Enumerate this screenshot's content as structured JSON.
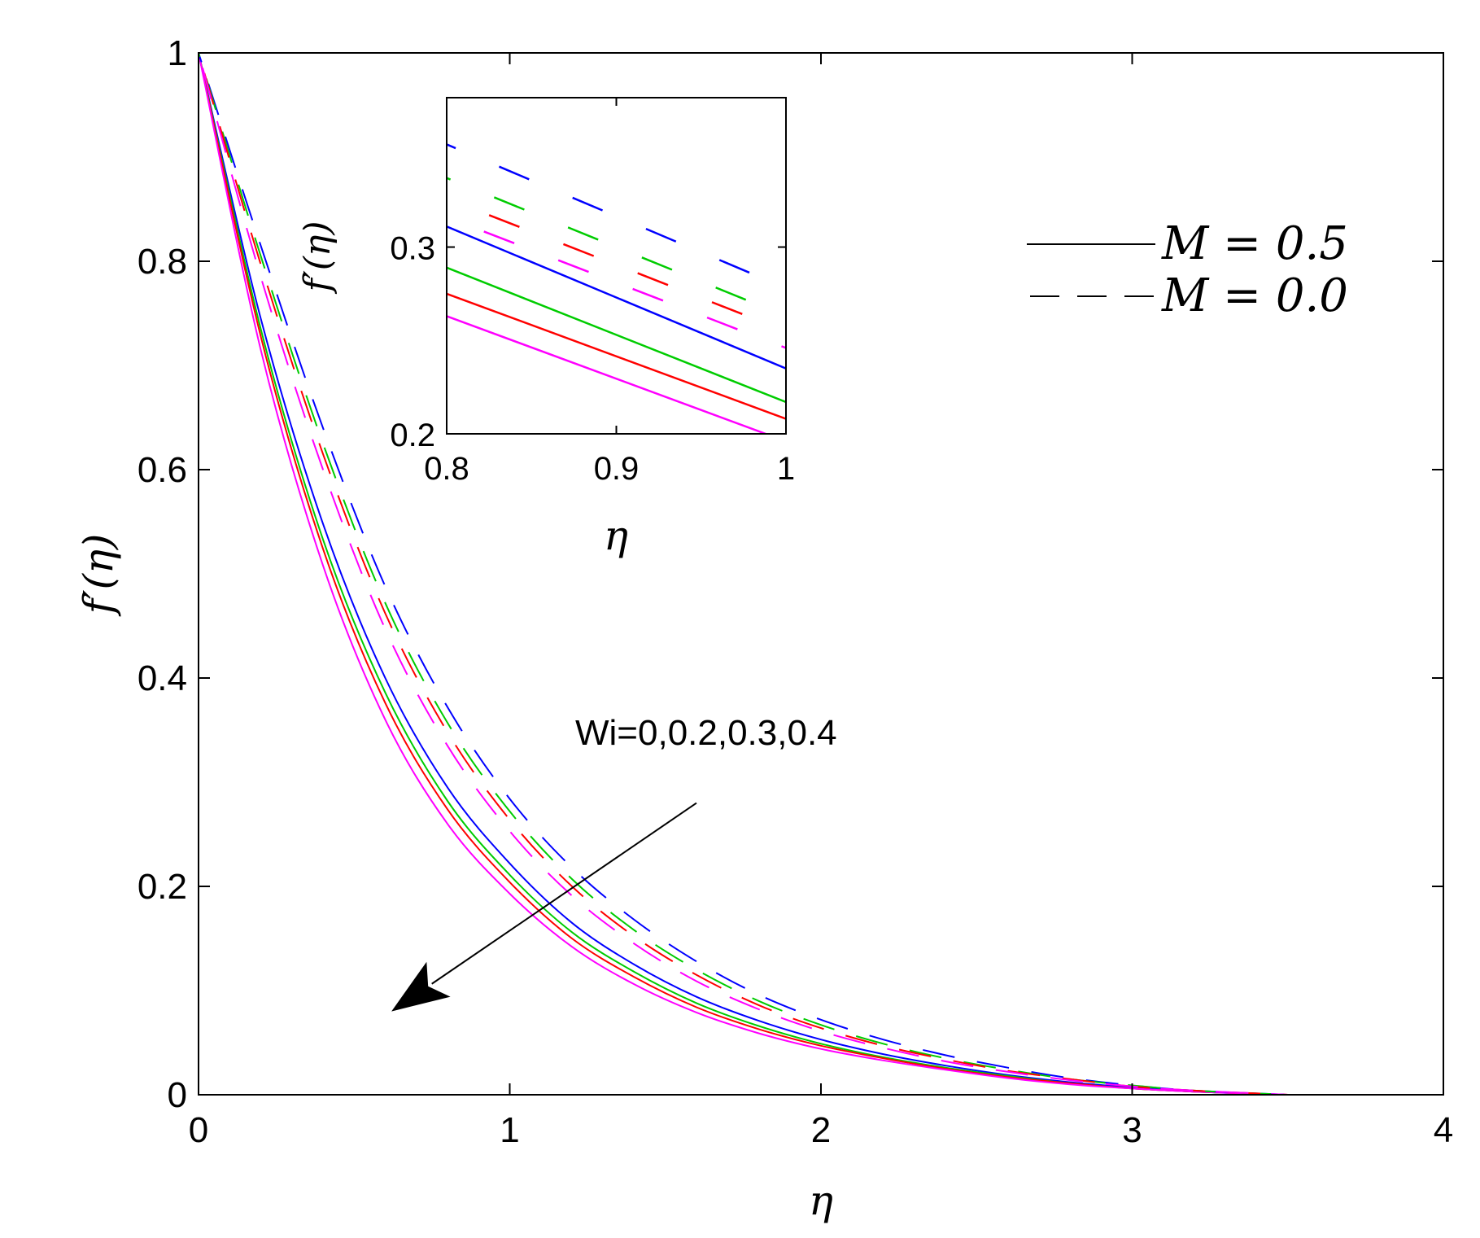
{
  "chart_data": [
    {
      "type": "line",
      "title": "",
      "xlabel": "η",
      "ylabel": "f′(η)",
      "xlim": [
        0,
        4
      ],
      "ylim": [
        0,
        1
      ],
      "xticks": [
        0,
        1,
        2,
        3,
        4
      ],
      "yticks": [
        0,
        0.2,
        0.4,
        0.6,
        0.8,
        1
      ],
      "xtick_labels": [
        "0",
        "1",
        "2",
        "3",
        "4"
      ],
      "ytick_labels": [
        "0",
        "0.2",
        "0.4",
        "0.6",
        "0.8",
        "1"
      ],
      "grid": false,
      "legend": {
        "placement": "top-right",
        "entries": [
          {
            "label": "M = 0.5",
            "style": "solid"
          },
          {
            "label": "M = 0.0",
            "style": "dashed"
          }
        ]
      },
      "annotation": {
        "text": "Wi=0,0.2,0.3,0.4",
        "arrow_from": [
          1.6,
          0.28
        ],
        "arrow_to": [
          0.62,
          0.08
        ]
      },
      "x": [
        0,
        0.2,
        0.4,
        0.6,
        0.8,
        1.0,
        1.2,
        1.4,
        1.6,
        1.8,
        2.0,
        2.2,
        2.4,
        2.6,
        2.8,
        3.0,
        3.2,
        3.5
      ],
      "series": [
        {
          "color": "#0000ff",
          "style": "solid",
          "values": [
            1,
            0.745,
            0.548,
            0.4,
            0.295,
            0.222,
            0.165,
            0.125,
            0.094,
            0.071,
            0.053,
            0.039,
            0.028,
            0.019,
            0.012,
            0.007,
            0.003,
            0.0
          ]
        },
        {
          "color": "#00cc00",
          "style": "solid",
          "values": [
            1,
            0.735,
            0.533,
            0.386,
            0.282,
            0.211,
            0.156,
            0.118,
            0.088,
            0.066,
            0.049,
            0.036,
            0.026,
            0.018,
            0.011,
            0.006,
            0.003,
            0.0
          ]
        },
        {
          "color": "#ff0000",
          "style": "solid",
          "values": [
            1,
            0.728,
            0.524,
            0.376,
            0.274,
            0.204,
            0.15,
            0.113,
            0.084,
            0.063,
            0.047,
            0.035,
            0.025,
            0.017,
            0.011,
            0.006,
            0.003,
            0.0
          ]
        },
        {
          "color": "#ff00ff",
          "style": "solid",
          "values": [
            1,
            0.715,
            0.508,
            0.36,
            0.26,
            0.193,
            0.142,
            0.106,
            0.079,
            0.059,
            0.044,
            0.033,
            0.024,
            0.016,
            0.01,
            0.006,
            0.003,
            0.0
          ]
        },
        {
          "color": "#0000ff",
          "style": "dashed",
          "values": [
            1,
            0.815,
            0.64,
            0.488,
            0.372,
            0.284,
            0.218,
            0.168,
            0.128,
            0.096,
            0.072,
            0.053,
            0.038,
            0.026,
            0.016,
            0.009,
            0.004,
            0.0
          ]
        },
        {
          "color": "#00cc00",
          "style": "dashed",
          "values": [
            1,
            0.805,
            0.625,
            0.472,
            0.357,
            0.272,
            0.207,
            0.158,
            0.12,
            0.09,
            0.067,
            0.049,
            0.035,
            0.024,
            0.015,
            0.009,
            0.004,
            0.0
          ]
        },
        {
          "color": "#ff0000",
          "style": "dashed",
          "values": [
            1,
            0.797,
            0.615,
            0.462,
            0.348,
            0.264,
            0.2,
            0.152,
            0.115,
            0.086,
            0.064,
            0.047,
            0.034,
            0.023,
            0.015,
            0.008,
            0.004,
            0.0
          ]
        },
        {
          "color": "#ff00ff",
          "style": "dashed",
          "values": [
            1,
            0.785,
            0.6,
            0.447,
            0.335,
            0.253,
            0.191,
            0.145,
            0.109,
            0.082,
            0.061,
            0.045,
            0.032,
            0.022,
            0.014,
            0.008,
            0.004,
            0.0
          ]
        }
      ]
    },
    {
      "type": "line",
      "title": "",
      "xlabel": "η",
      "ylabel": "f′(η)",
      "xlim": [
        0.8,
        1.0
      ],
      "ylim": [
        0.2,
        0.38
      ],
      "xticks": [
        0.8,
        0.9,
        1.0
      ],
      "yticks": [
        0.2,
        0.3
      ],
      "xtick_labels": [
        "0.8",
        "0.9",
        "1"
      ],
      "ytick_labels": [
        "0.2",
        "0.3"
      ],
      "grid": false,
      "x": [
        0.8,
        1.0
      ],
      "series": [
        {
          "color": "#0000ff",
          "style": "solid",
          "values": [
            0.311,
            0.235
          ]
        },
        {
          "color": "#00cc00",
          "style": "solid",
          "values": [
            0.289,
            0.217
          ]
        },
        {
          "color": "#ff0000",
          "style": "solid",
          "values": [
            0.275,
            0.208
          ]
        },
        {
          "color": "#ff00ff",
          "style": "solid",
          "values": [
            0.263,
            0.196
          ]
        },
        {
          "color": "#0000ff",
          "style": "dashed",
          "values": [
            0.355,
            0.278
          ]
        },
        {
          "color": "#00cc00",
          "style": "dashed",
          "values": [
            0.337,
            0.263
          ]
        },
        {
          "color": "#ff0000",
          "style": "dashed",
          "values": [
            0.326,
            0.255
          ]
        },
        {
          "color": "#ff00ff",
          "style": "dashed",
          "values": [
            0.316,
            0.246
          ]
        }
      ]
    }
  ]
}
